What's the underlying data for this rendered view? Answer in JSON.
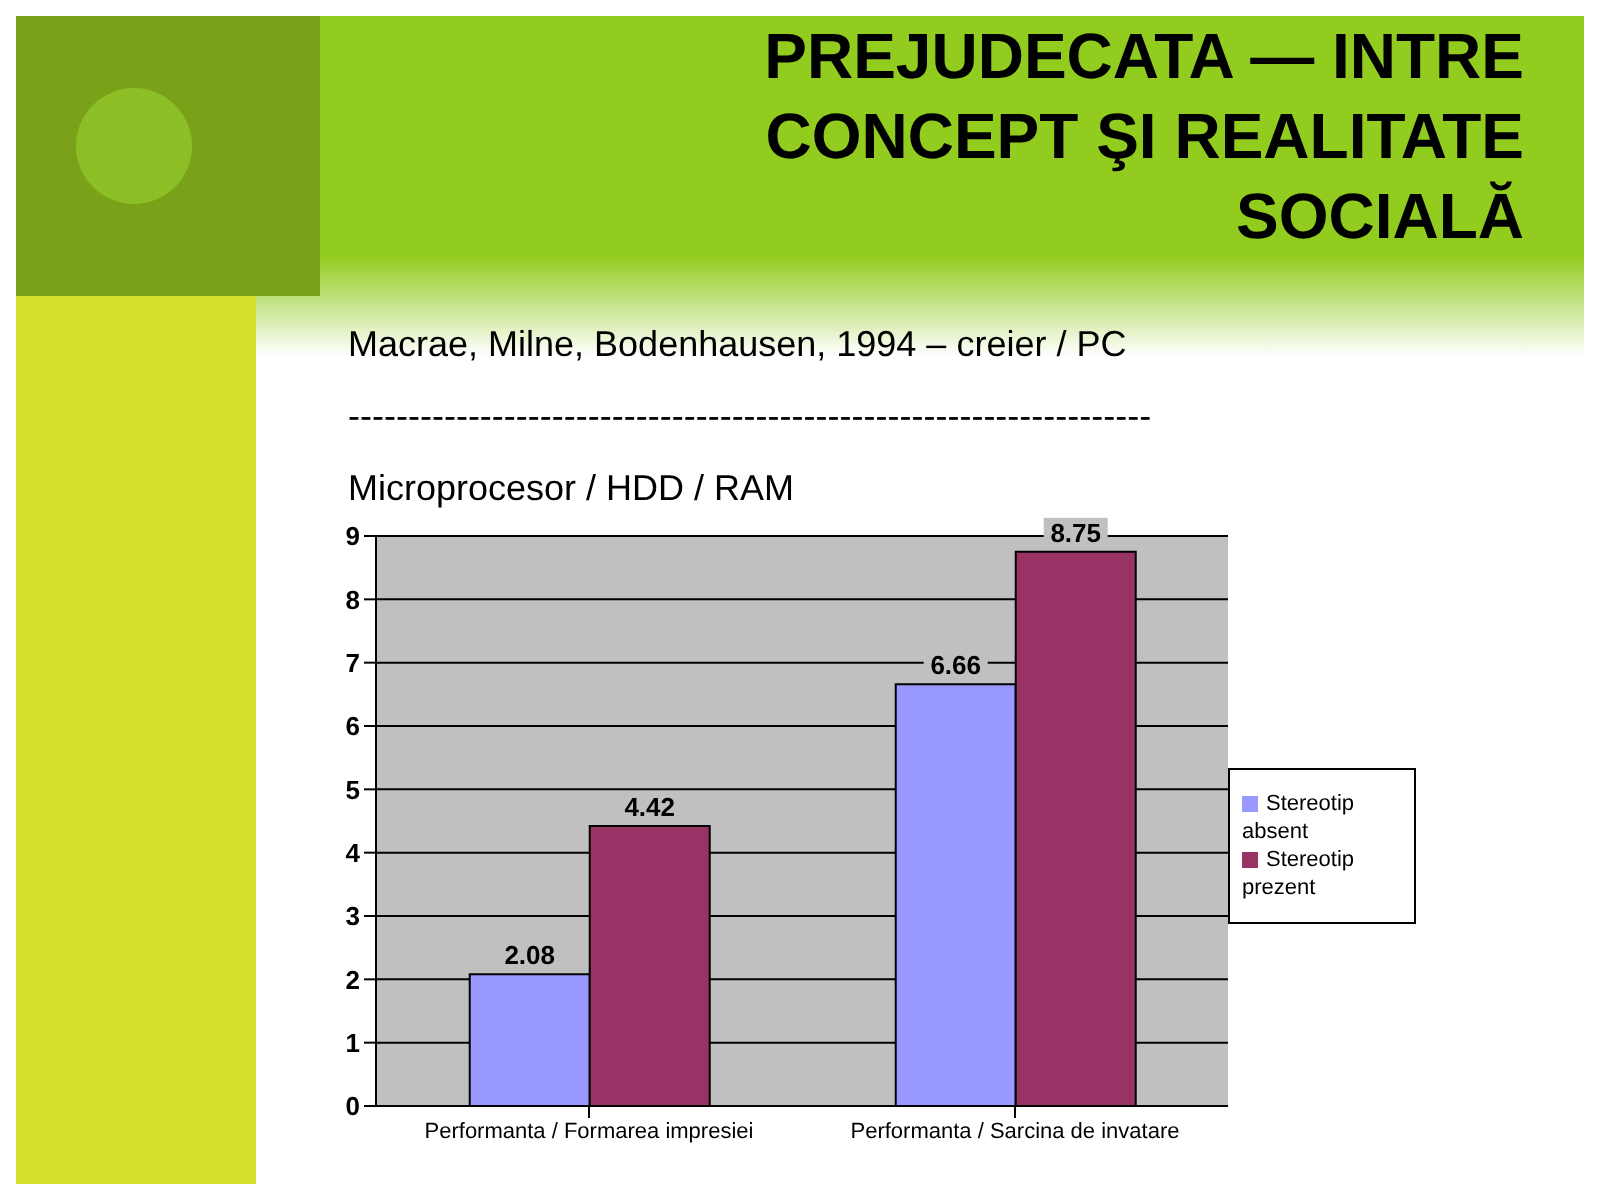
{
  "chart_data": {
    "type": "bar",
    "title": "PREJUDECATA — INTRE CONCEPT ŞI REALITATE SOCIALĂ",
    "annotations": [
      "Macrae, Milne, Bodenhausen, 1994 – creier / PC",
      "-------------------------------------------------------------------",
      "Microprocesor / HDD / RAM"
    ],
    "categories": [
      "Performanta / Formarea impresiei",
      "Performanta / Sarcina de invatare"
    ],
    "series": [
      {
        "name": "Stereotip absent",
        "color": "#9999ff",
        "values": [
          2.08,
          6.66
        ]
      },
      {
        "name": "Stereotip prezent",
        "color": "#993366",
        "values": [
          4.42,
          8.75
        ]
      }
    ],
    "ylim": [
      0,
      9
    ],
    "yticks": [
      0,
      1,
      2,
      3,
      4,
      5,
      6,
      7,
      8,
      9
    ],
    "grid": "y",
    "legend": "right",
    "data_labels": true
  }
}
